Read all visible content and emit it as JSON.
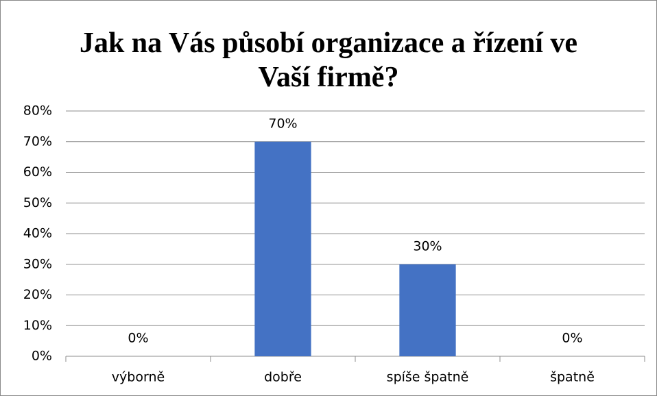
{
  "chart_data": {
    "type": "bar",
    "title": "Jak na Vás působí organizace a řízení ve Vaší firmě?",
    "categories": [
      "výborně",
      "dobře",
      "spíše špatně",
      "špatně"
    ],
    "values": [
      0,
      70,
      30,
      0
    ],
    "value_labels": [
      "0%",
      "70%",
      "30%",
      "0%"
    ],
    "color": "#4472c4",
    "ylim": [
      0,
      80
    ],
    "yticks": [
      {
        "value": 0,
        "label": "0%"
      },
      {
        "value": 10,
        "label": "10%"
      },
      {
        "value": 20,
        "label": "20%"
      },
      {
        "value": 30,
        "label": "30%"
      },
      {
        "value": 40,
        "label": "40%"
      },
      {
        "value": 50,
        "label": "50%"
      },
      {
        "value": 60,
        "label": "60%"
      },
      {
        "value": 70,
        "label": "70%"
      },
      {
        "value": 80,
        "label": "80%"
      }
    ],
    "grid": true
  }
}
